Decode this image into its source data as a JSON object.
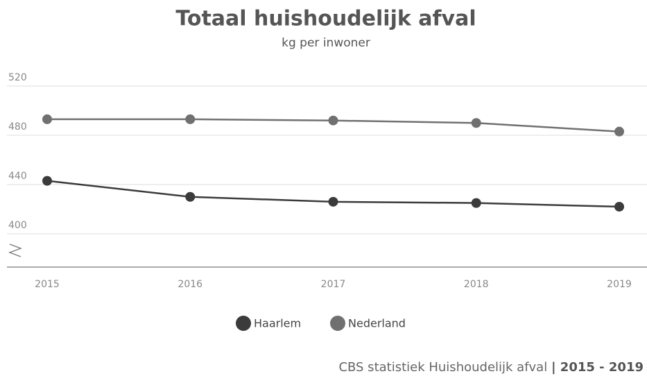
{
  "chart_data": {
    "type": "line",
    "title": "Totaal huishoudelijk afval",
    "subtitle": "kg per inwoner",
    "categories": [
      "2015",
      "2016",
      "2017",
      "2018",
      "2019"
    ],
    "series": [
      {
        "name": "Haarlem",
        "color": "#3b3b3b",
        "values": [
          443,
          430,
          426,
          425,
          422
        ]
      },
      {
        "name": "Nederland",
        "color": "#707070",
        "values": [
          493,
          493,
          492,
          490,
          483
        ]
      }
    ],
    "ylim": [
      400,
      520
    ],
    "yticks": [
      400,
      440,
      480,
      520
    ],
    "grid": true,
    "source": "CBS statistiek Huishoudelijk afval",
    "source_period": "| 2015 - 2019"
  }
}
